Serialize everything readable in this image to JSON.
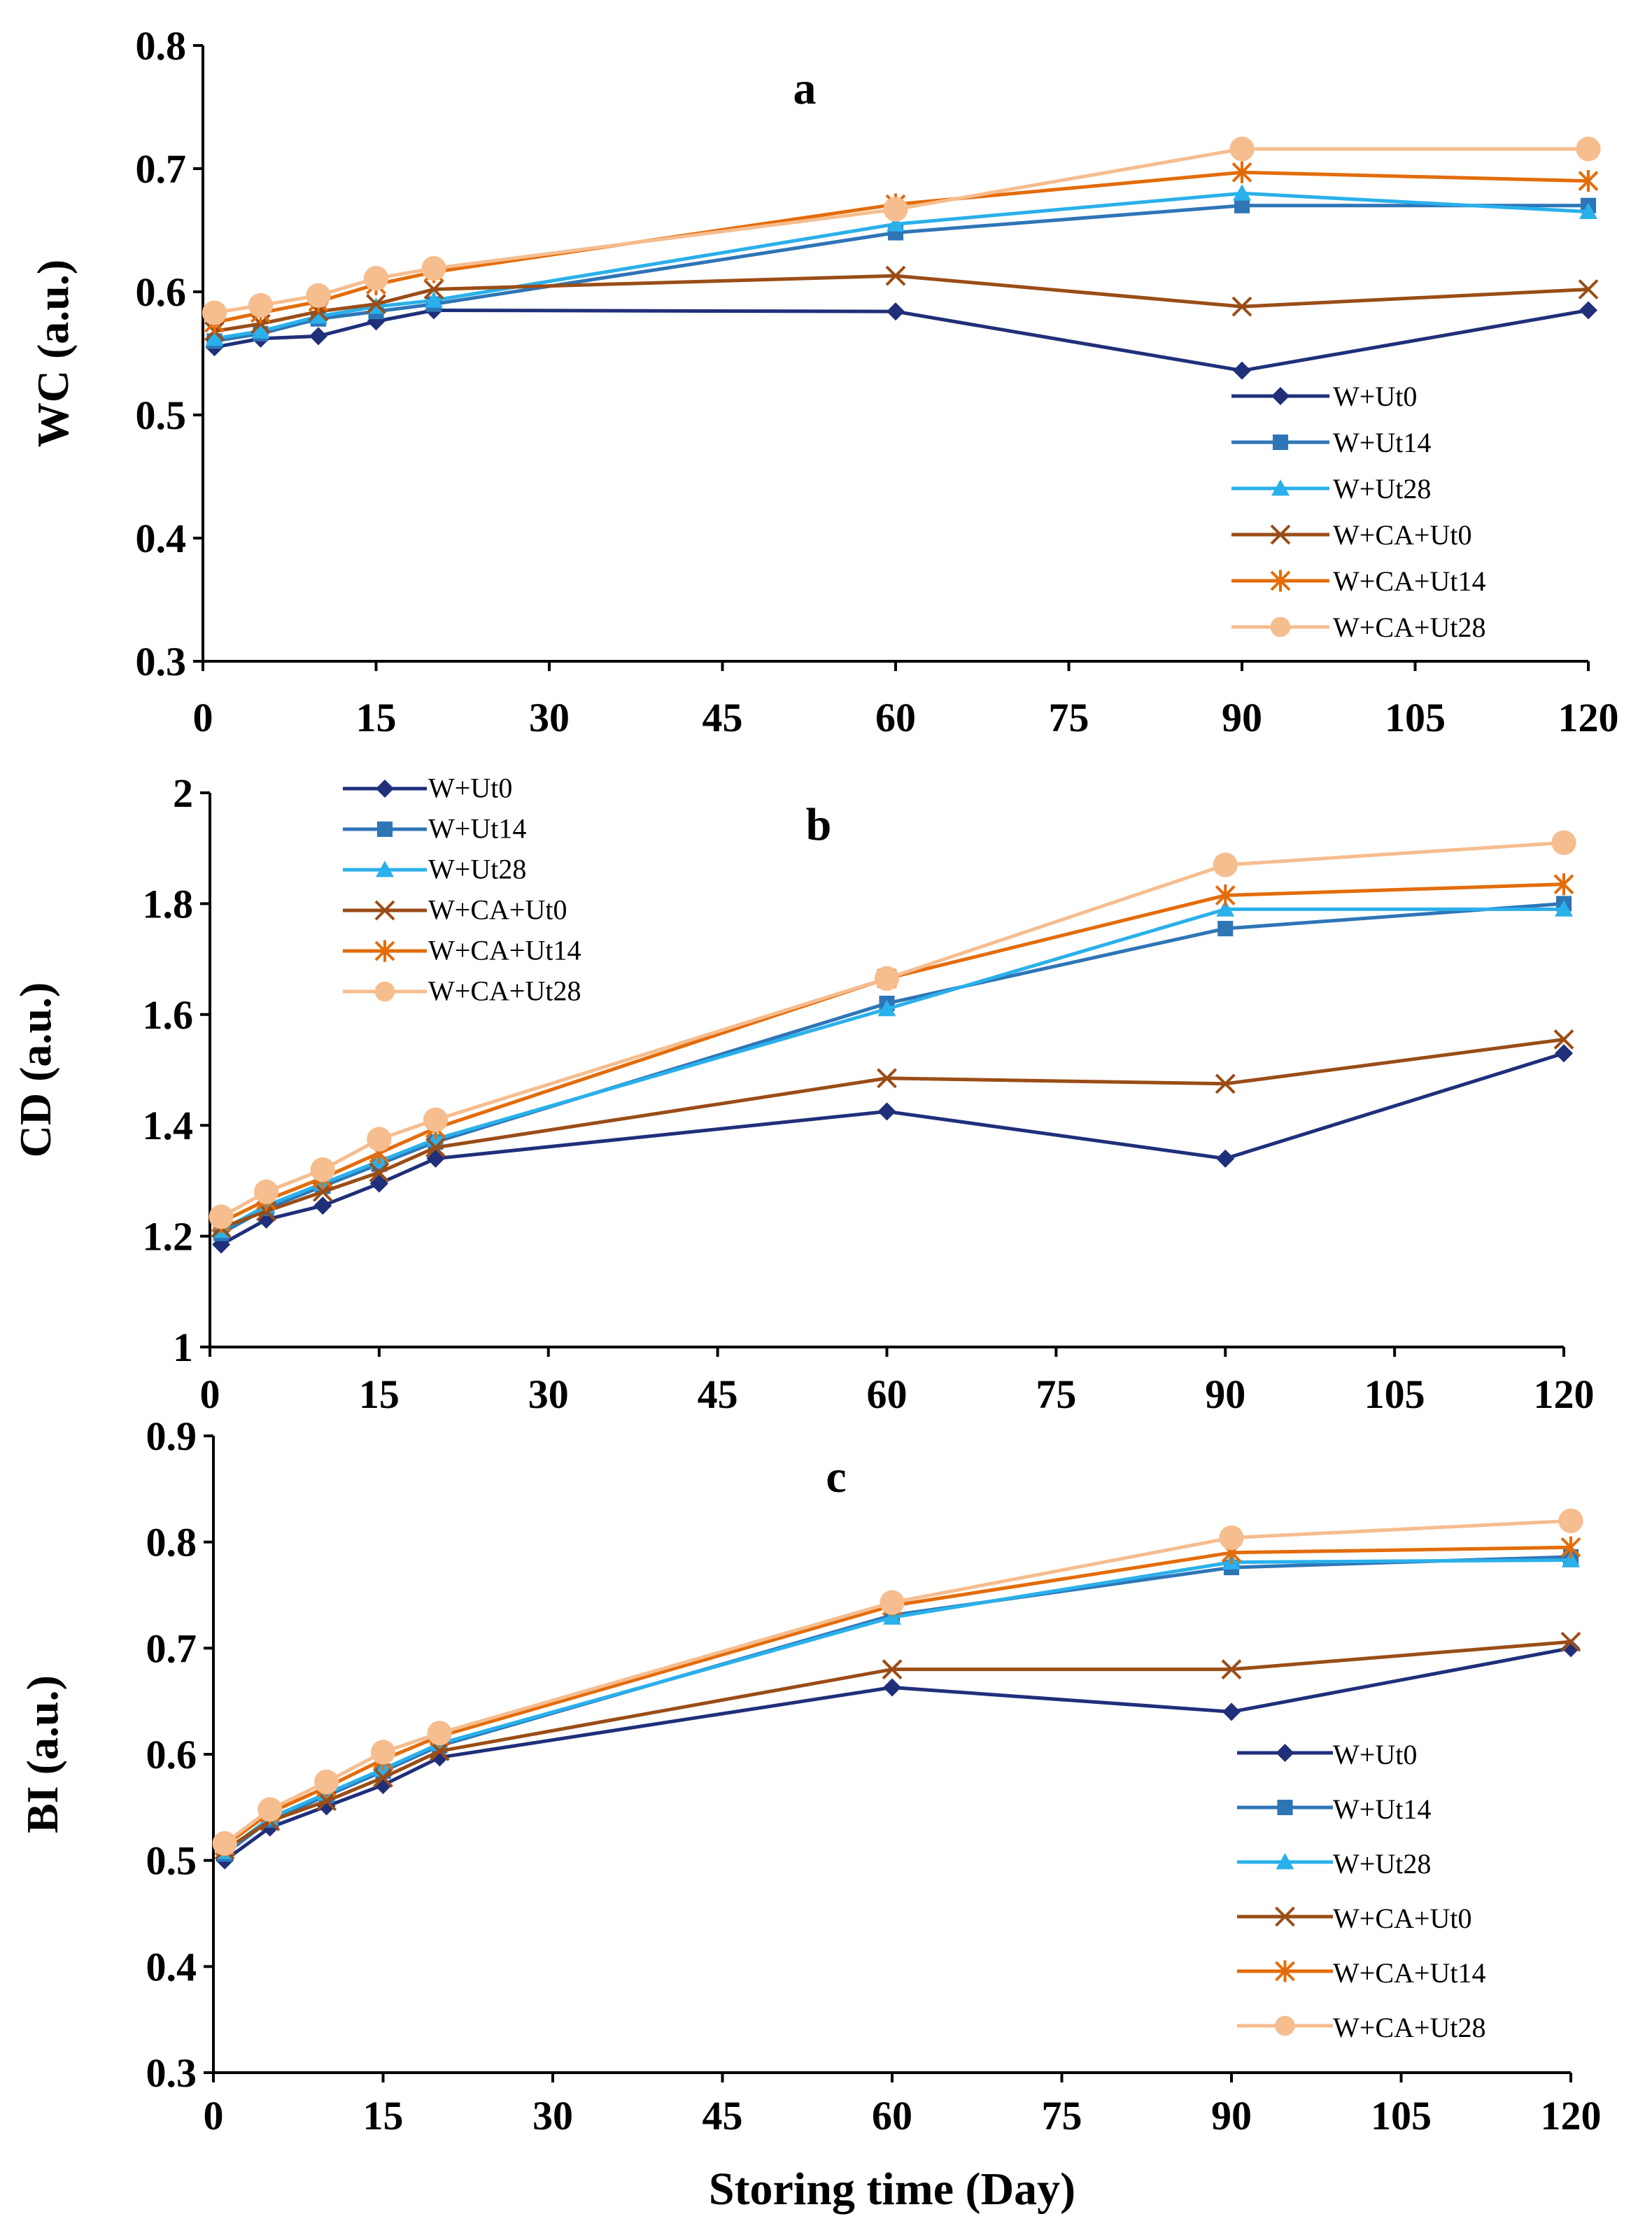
{
  "figure": {
    "colors": {
      "W+Ut0": "#1f2f7a",
      "W+Ut14": "#2e75b6",
      "W+Ut28": "#2ab0ea",
      "W+CA+Ut0": "#9a4d17",
      "W+CA+Ut14": "#e36c0a",
      "W+CA+Ut28": "#f6bd8f"
    },
    "markers": {
      "W+Ut0": "diamond-icon",
      "W+Ut14": "square-icon",
      "W+Ut28": "triangle-icon",
      "W+CA+Ut0": "x-icon",
      "W+CA+Ut14": "asterisk-icon",
      "W+CA+Ut28": "circle-icon"
    }
  },
  "chart_data": [
    {
      "type": "line",
      "panel": "a",
      "title": "a",
      "xlabel": "",
      "ylabel": "WC (a.u.)",
      "xlim": [
        0,
        120
      ],
      "ylim": [
        0.3,
        0.8
      ],
      "xticks": [
        "0",
        "15",
        "30",
        "45",
        "60",
        "75",
        "90",
        "105",
        "120"
      ],
      "yticks": [
        "0.3",
        "0.4",
        "0.5",
        "0.6",
        "0.7",
        "0.8"
      ],
      "legend_position": "bottom-right",
      "x": [
        1,
        5,
        10,
        15,
        20,
        60,
        90,
        120
      ],
      "series": [
        {
          "name": "W+Ut0",
          "values": [
            0.555,
            0.562,
            0.564,
            0.576,
            0.585,
            0.584,
            0.536,
            0.585
          ]
        },
        {
          "name": "W+Ut14",
          "values": [
            0.56,
            0.566,
            0.578,
            0.584,
            0.59,
            0.648,
            0.67,
            0.67
          ]
        },
        {
          "name": "W+Ut28",
          "values": [
            0.562,
            0.568,
            0.58,
            0.588,
            0.593,
            0.655,
            0.68,
            0.665
          ]
        },
        {
          "name": "W+CA+Ut0",
          "values": [
            0.568,
            0.574,
            0.584,
            0.59,
            0.602,
            0.613,
            0.588,
            0.602
          ]
        },
        {
          "name": "W+CA+Ut14",
          "values": [
            0.575,
            0.583,
            0.592,
            0.606,
            0.616,
            0.671,
            0.697,
            0.69
          ]
        },
        {
          "name": "W+CA+Ut28",
          "values": [
            0.583,
            0.589,
            0.597,
            0.611,
            0.619,
            0.667,
            0.716,
            0.716
          ]
        }
      ]
    },
    {
      "type": "line",
      "panel": "b",
      "title": "b",
      "xlabel": "",
      "ylabel": "CD (a.u.)",
      "xlim": [
        0,
        120
      ],
      "ylim": [
        1,
        2
      ],
      "xticks": [
        "0",
        "15",
        "30",
        "45",
        "60",
        "75",
        "90",
        "105",
        "120"
      ],
      "yticks": [
        "1",
        "1.2",
        "1.4",
        "1.6",
        "1.8",
        "2"
      ],
      "legend_position": "top-left",
      "x": [
        1,
        5,
        10,
        15,
        20,
        60,
        90,
        120
      ],
      "series": [
        {
          "name": "W+Ut0",
          "values": [
            1.185,
            1.23,
            1.255,
            1.295,
            1.34,
            1.425,
            1.34,
            1.53
          ]
        },
        {
          "name": "W+Ut14",
          "values": [
            1.205,
            1.25,
            1.29,
            1.33,
            1.37,
            1.62,
            1.755,
            1.8
          ]
        },
        {
          "name": "W+Ut28",
          "values": [
            1.21,
            1.255,
            1.295,
            1.335,
            1.375,
            1.61,
            1.79,
            1.79
          ]
        },
        {
          "name": "W+CA+Ut0",
          "values": [
            1.215,
            1.245,
            1.28,
            1.315,
            1.36,
            1.485,
            1.475,
            1.555
          ]
        },
        {
          "name": "W+CA+Ut14",
          "values": [
            1.225,
            1.265,
            1.305,
            1.35,
            1.395,
            1.665,
            1.815,
            1.835
          ]
        },
        {
          "name": "W+CA+Ut28",
          "values": [
            1.235,
            1.28,
            1.32,
            1.375,
            1.41,
            1.665,
            1.87,
            1.91
          ]
        }
      ]
    },
    {
      "type": "line",
      "panel": "c",
      "title": "c",
      "xlabel": "Storing time (Day)",
      "ylabel": "BI (a.u.)",
      "xlim": [
        0,
        120
      ],
      "ylim": [
        0.3,
        0.9
      ],
      "xticks": [
        "0",
        "15",
        "30",
        "45",
        "60",
        "75",
        "90",
        "105",
        "120"
      ],
      "yticks": [
        "0.3",
        "0.4",
        "0.5",
        "0.6",
        "0.7",
        "0.8",
        "0.9"
      ],
      "legend_position": "bottom-right",
      "x": [
        1,
        5,
        10,
        15,
        20,
        60,
        90,
        120
      ],
      "series": [
        {
          "name": "W+Ut0",
          "values": [
            0.5,
            0.531,
            0.551,
            0.571,
            0.597,
            0.663,
            0.64,
            0.7
          ]
        },
        {
          "name": "W+Ut14",
          "values": [
            0.506,
            0.538,
            0.561,
            0.584,
            0.608,
            0.731,
            0.776,
            0.786
          ]
        },
        {
          "name": "W+Ut28",
          "values": [
            0.508,
            0.54,
            0.563,
            0.586,
            0.61,
            0.729,
            0.781,
            0.783
          ]
        },
        {
          "name": "W+CA+Ut0",
          "values": [
            0.51,
            0.537,
            0.556,
            0.578,
            0.603,
            0.68,
            0.68,
            0.706
          ]
        },
        {
          "name": "W+CA+Ut14",
          "values": [
            0.514,
            0.545,
            0.569,
            0.595,
            0.617,
            0.74,
            0.79,
            0.795
          ]
        },
        {
          "name": "W+CA+Ut28",
          "values": [
            0.516,
            0.548,
            0.574,
            0.602,
            0.62,
            0.743,
            0.804,
            0.82
          ]
        }
      ]
    }
  ]
}
